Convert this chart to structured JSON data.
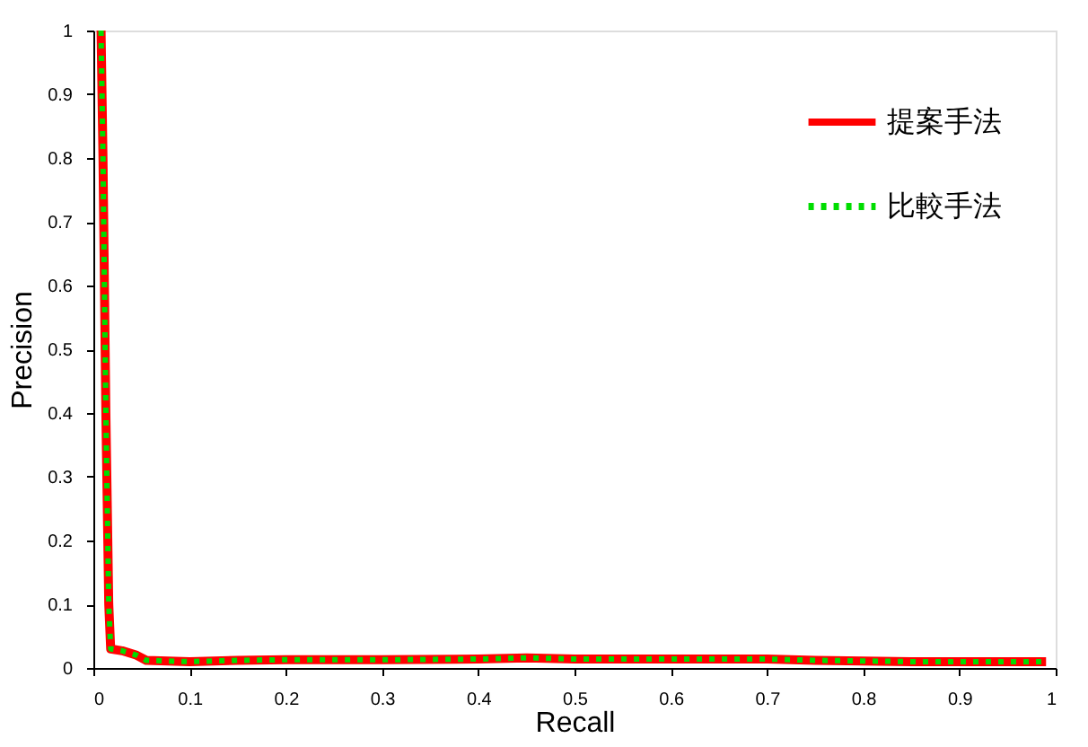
{
  "chart_data": {
    "type": "line",
    "xlabel": "Recall",
    "ylabel": "Precision",
    "xlim": [
      0,
      1
    ],
    "ylim": [
      0,
      1
    ],
    "xticks": [
      0,
      0.1,
      0.2,
      0.3,
      0.4,
      0.5,
      0.6,
      0.7,
      0.8,
      0.9,
      1
    ],
    "yticks": [
      0,
      0.1,
      0.2,
      0.3,
      0.4,
      0.5,
      0.6,
      0.7,
      0.8,
      0.9,
      1
    ],
    "grid": false,
    "legend": "top right",
    "marker": "none",
    "series": [
      {
        "name": "提案手法",
        "color": "#ff0000",
        "line_style": "solid",
        "x": [
          0.008,
          0.01,
          0.013,
          0.016,
          0.018,
          0.03,
          0.045,
          0.055,
          0.1,
          0.15,
          0.2,
          0.3,
          0.4,
          0.45,
          0.5,
          0.7,
          0.75,
          0.85,
          0.99
        ],
        "values": [
          1.0,
          0.8,
          0.4,
          0.1,
          0.03,
          0.027,
          0.02,
          0.012,
          0.01,
          0.012,
          0.013,
          0.013,
          0.014,
          0.016,
          0.014,
          0.014,
          0.012,
          0.01,
          0.01
        ]
      },
      {
        "name": "比較手法",
        "color": "#00dd00",
        "line_style": "dotted",
        "x": [
          0.008,
          0.01,
          0.013,
          0.016,
          0.018,
          0.03,
          0.045,
          0.055,
          0.1,
          0.15,
          0.2,
          0.3,
          0.4,
          0.45,
          0.5,
          0.7,
          0.75,
          0.85,
          0.99
        ],
        "values": [
          1.0,
          0.8,
          0.4,
          0.1,
          0.03,
          0.027,
          0.02,
          0.012,
          0.01,
          0.012,
          0.013,
          0.013,
          0.014,
          0.016,
          0.014,
          0.014,
          0.012,
          0.01,
          0.01
        ]
      }
    ]
  }
}
